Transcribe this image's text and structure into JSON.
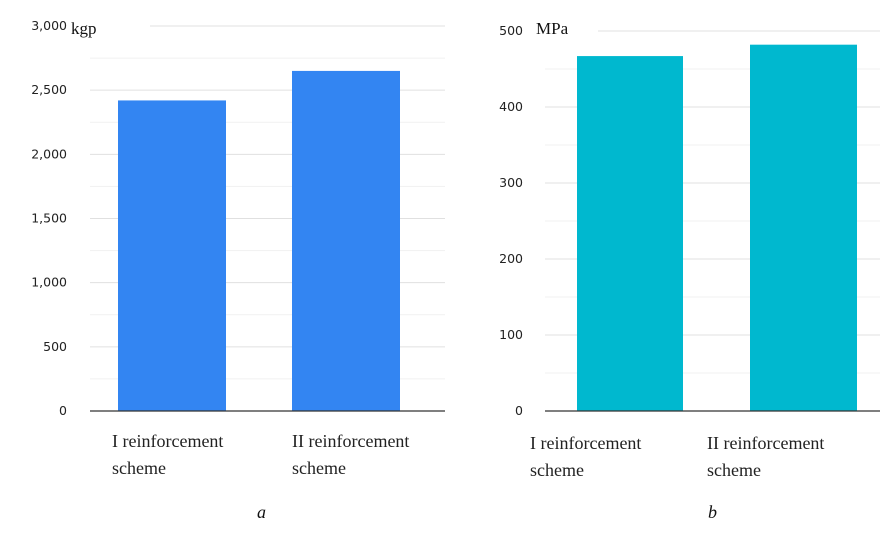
{
  "chart_data": [
    {
      "type": "bar",
      "panel_label": "a",
      "unit_label": "kgp",
      "categories": [
        [
          "I reinforcement",
          "scheme"
        ],
        [
          "II reinforcement",
          "scheme"
        ]
      ],
      "values": [
        2420,
        2650
      ],
      "ylim": [
        0,
        3000
      ],
      "yticks": [
        0,
        500,
        1000,
        1500,
        2000,
        2500,
        3000
      ],
      "ytick_labels": [
        "0",
        "500",
        "1,000",
        "1,500",
        "2,000",
        "2,500",
        "3,000"
      ],
      "color": "#3385f2",
      "grid": true
    },
    {
      "type": "bar",
      "panel_label": "b",
      "unit_label": "MPa",
      "categories": [
        [
          "I reinforcement",
          "scheme"
        ],
        [
          "II reinforcement",
          "scheme"
        ]
      ],
      "values": [
        467,
        482
      ],
      "ylim": [
        0,
        500
      ],
      "yticks": [
        0,
        100,
        200,
        300,
        400,
        500
      ],
      "ytick_labels": [
        "0",
        "100",
        "200",
        "300",
        "400",
        "500"
      ],
      "color": "#00b8cf",
      "grid": true
    }
  ]
}
